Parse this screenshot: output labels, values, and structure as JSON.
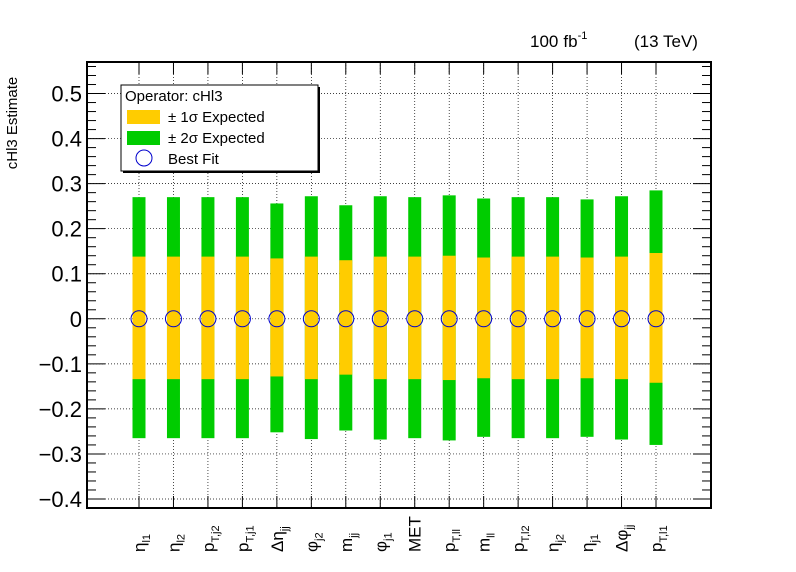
{
  "header": {
    "luminosity_value": "100",
    "luminosity_unit": "fb",
    "luminosity_exponent": "-1",
    "energy_label": "(13 TeV)"
  },
  "chart_data": {
    "type": "error-band",
    "ylabel": "cHl3 Estimate",
    "ylim": [
      -0.42,
      0.57
    ],
    "yticks": [
      {
        "value": 0.5,
        "label": "0.5"
      },
      {
        "value": 0.4,
        "label": "0.4"
      },
      {
        "value": 0.3,
        "label": "0.3"
      },
      {
        "value": 0.2,
        "label": "0.2"
      },
      {
        "value": 0.1,
        "label": "0.1"
      },
      {
        "value": 0.0,
        "label": "0"
      },
      {
        "value": -0.1,
        "label": "−0.1"
      },
      {
        "value": -0.2,
        "label": "−0.2"
      },
      {
        "value": -0.3,
        "label": "−0.3"
      },
      {
        "value": -0.4,
        "label": "−0.4"
      }
    ],
    "grid": true,
    "legend": {
      "placement": "top-left",
      "title": "Operator: cHl3",
      "entries": [
        {
          "name": "± 1σ Expected",
          "color": "#ffcc00",
          "kind": "box"
        },
        {
          "name": "± 2σ Expected",
          "color": "#00cc00",
          "kind": "box"
        },
        {
          "name": "Best Fit",
          "color": "#0000cc",
          "kind": "marker"
        }
      ]
    },
    "colors": {
      "one_sigma": "#ffcc00",
      "two_sigma": "#00cc00",
      "best_fit": "#0000cc"
    },
    "categories": [
      {
        "base": "η",
        "sub": "l1"
      },
      {
        "base": "η",
        "sub": "l2"
      },
      {
        "base": "p",
        "sub": "T,j2"
      },
      {
        "base": "p",
        "sub": "T,j1"
      },
      {
        "base": "Δη",
        "sub": "jj"
      },
      {
        "base": "φ",
        "sub": "j2"
      },
      {
        "base": "m",
        "sub": "jj"
      },
      {
        "base": "φ",
        "sub": "j1"
      },
      {
        "base": "MET",
        "sub": ""
      },
      {
        "base": "p",
        "sub": "T,ll"
      },
      {
        "base": "m",
        "sub": "ll"
      },
      {
        "base": "p",
        "sub": "T,l2"
      },
      {
        "base": "η",
        "sub": "j2"
      },
      {
        "base": "η",
        "sub": "j1"
      },
      {
        "base": "Δφ",
        "sub": "jj"
      },
      {
        "base": "p",
        "sub": "T,l1"
      }
    ],
    "best_fit": [
      0,
      0,
      0,
      0,
      0,
      0,
      0,
      0,
      0,
      0,
      0,
      0,
      0,
      0,
      0,
      0
    ],
    "one_sigma_low": [
      -0.134,
      -0.134,
      -0.134,
      -0.134,
      -0.128,
      -0.134,
      -0.124,
      -0.134,
      -0.134,
      -0.136,
      -0.132,
      -0.134,
      -0.134,
      -0.132,
      -0.134,
      -0.142
    ],
    "one_sigma_high": [
      0.138,
      0.138,
      0.138,
      0.138,
      0.134,
      0.138,
      0.13,
      0.138,
      0.138,
      0.14,
      0.136,
      0.138,
      0.138,
      0.136,
      0.138,
      0.146
    ],
    "two_sigma_low": [
      -0.265,
      -0.265,
      -0.265,
      -0.265,
      -0.252,
      -0.267,
      -0.248,
      -0.268,
      -0.265,
      -0.27,
      -0.262,
      -0.265,
      -0.265,
      -0.262,
      -0.268,
      -0.28
    ],
    "two_sigma_high": [
      0.27,
      0.27,
      0.27,
      0.27,
      0.256,
      0.272,
      0.252,
      0.272,
      0.27,
      0.274,
      0.267,
      0.27,
      0.27,
      0.265,
      0.272,
      0.285
    ]
  }
}
